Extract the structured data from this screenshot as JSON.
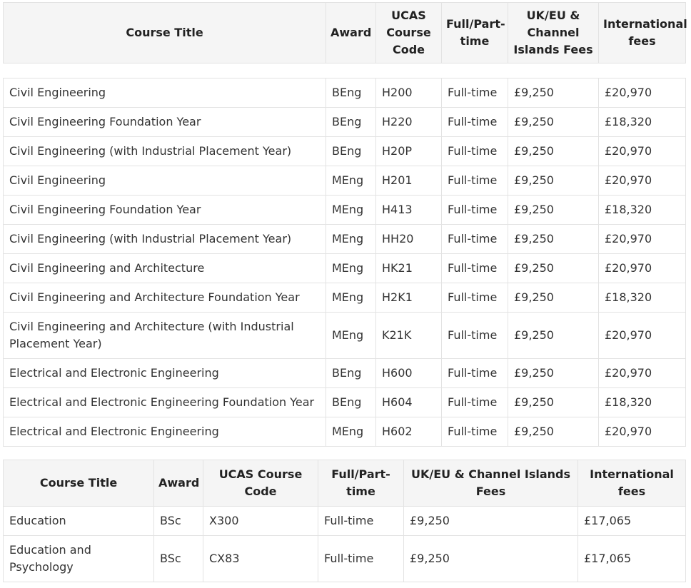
{
  "engineering": {
    "headers": {
      "course_title": "Course Title",
      "award": "Award",
      "ucas": "UCAS Course Code",
      "mode": "Full/Part-time",
      "uk_fees": "UK/EU & Channel Islands Fees",
      "intl_fees": "International fees"
    },
    "rows": [
      {
        "title": "Civil Engineering",
        "award": "BEng",
        "code": "H200",
        "mode": "Full-time",
        "uk": "£9,250",
        "intl": "£20,970"
      },
      {
        "title": "Civil Engineering Foundation Year",
        "award": "BEng",
        "code": "H220",
        "mode": "Full-time",
        "uk": "£9,250",
        "intl": "£18,320"
      },
      {
        "title": "Civil Engineering (with Industrial Placement Year)",
        "award": "BEng",
        "code": "H20P",
        "mode": "Full-time",
        "uk": "£9,250",
        "intl": "£20,970"
      },
      {
        "title": "Civil Engineering",
        "award": "MEng",
        "code": "H201",
        "mode": "Full-time",
        "uk": "£9,250",
        "intl": "£20,970"
      },
      {
        "title": "Civil Engineering Foundation Year",
        "award": "MEng",
        "code": "H413",
        "mode": "Full-time",
        "uk": "£9,250",
        "intl": "£18,320"
      },
      {
        "title": "Civil Engineering (with Industrial Placement Year)",
        "award": "MEng",
        "code": "HH20",
        "mode": "Full-time",
        "uk": "£9,250",
        "intl": "£20,970"
      },
      {
        "title": "Civil Engineering and Architecture",
        "award": "MEng",
        "code": "HK21",
        "mode": "Full-time",
        "uk": "£9,250",
        "intl": "£20,970"
      },
      {
        "title": "Civil Engineering and Architecture Foundation Year",
        "award": "MEng",
        "code": "H2K1",
        "mode": "Full-time",
        "uk": "£9,250",
        "intl": "£18,320"
      },
      {
        "title": "Civil Engineering and Architecture (with Industrial Placement Year)",
        "award": "MEng",
        "code": "K21K",
        "mode": "Full-time",
        "uk": "£9,250",
        "intl": "£20,970"
      },
      {
        "title": "Electrical and Electronic Engineering",
        "award": "BEng",
        "code": "H600",
        "mode": "Full-time",
        "uk": "£9,250",
        "intl": "£20,970"
      },
      {
        "title": "Electrical and Electronic Engineering Foundation Year",
        "award": "BEng",
        "code": "H604",
        "mode": "Full-time",
        "uk": "£9,250",
        "intl": "£18,320"
      },
      {
        "title": "Electrical and Electronic Engineering",
        "award": "MEng",
        "code": "H602",
        "mode": "Full-time",
        "uk": "£9,250",
        "intl": "£20,970"
      }
    ]
  },
  "education": {
    "headers": {
      "course_title": "Course Title",
      "award": "Award",
      "ucas": "UCAS Course Code",
      "mode": "Full/Part-time",
      "uk_fees": "UK/EU & Channel Islands Fees",
      "intl_fees": "International fees"
    },
    "rows": [
      {
        "title": "Education",
        "award": "BSc",
        "code": "X300",
        "mode": "Full-time",
        "uk": "£9,250",
        "intl": "£17,065"
      },
      {
        "title": "Education and Psychology",
        "award": "BSc",
        "code": "CX83",
        "mode": "Full-time",
        "uk": "£9,250",
        "intl": "£17,065"
      }
    ]
  }
}
